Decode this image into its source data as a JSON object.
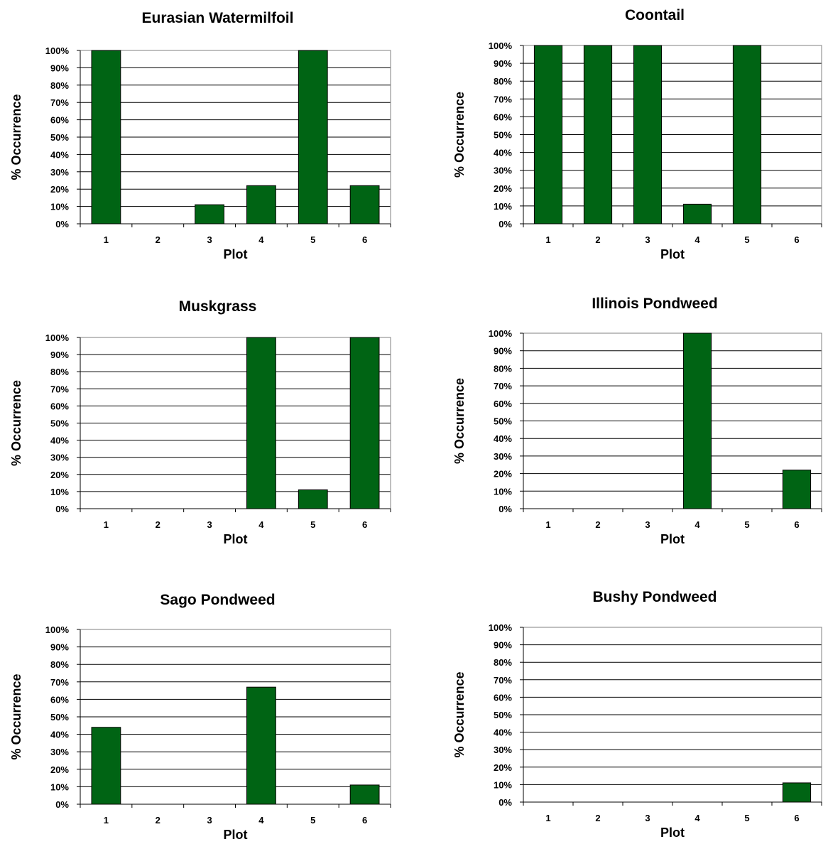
{
  "chart_data": [
    {
      "type": "bar",
      "title": "Eurasian Watermilfoil",
      "xlabel": "Plot",
      "ylabel": "% Occurrence",
      "categories": [
        "1",
        "2",
        "3",
        "4",
        "5",
        "6"
      ],
      "values": [
        100,
        0,
        11,
        22,
        100,
        22
      ],
      "ylim": [
        0,
        100
      ],
      "yticks": [
        "0%",
        "10%",
        "20%",
        "30%",
        "40%",
        "50%",
        "60%",
        "70%",
        "80%",
        "90%",
        "100%"
      ],
      "grid": true,
      "bar_color": "#006414"
    },
    {
      "type": "bar",
      "title": "Coontail",
      "xlabel": "Plot",
      "ylabel": "% Occurrence",
      "categories": [
        "1",
        "2",
        "3",
        "4",
        "5",
        "6"
      ],
      "values": [
        100,
        100,
        100,
        11,
        100,
        0
      ],
      "ylim": [
        0,
        100
      ],
      "yticks": [
        "0%",
        "10%",
        "20%",
        "30%",
        "40%",
        "50%",
        "60%",
        "70%",
        "80%",
        "90%",
        "100%"
      ],
      "grid": true,
      "bar_color": "#006414"
    },
    {
      "type": "bar",
      "title": "Muskgrass",
      "xlabel": "Plot",
      "ylabel": "% Occurrence",
      "categories": [
        "1",
        "2",
        "3",
        "4",
        "5",
        "6"
      ],
      "values": [
        0,
        0,
        0,
        100,
        11,
        100
      ],
      "ylim": [
        0,
        100
      ],
      "yticks": [
        "0%",
        "10%",
        "20%",
        "30%",
        "40%",
        "50%",
        "60%",
        "70%",
        "80%",
        "90%",
        "100%"
      ],
      "grid": true,
      "bar_color": "#006414"
    },
    {
      "type": "bar",
      "title": "Illinois Pondweed",
      "xlabel": "Plot",
      "ylabel": "% Occurrence",
      "categories": [
        "1",
        "2",
        "3",
        "4",
        "5",
        "6"
      ],
      "values": [
        0,
        0,
        0,
        100,
        0,
        22
      ],
      "ylim": [
        0,
        100
      ],
      "yticks": [
        "0%",
        "10%",
        "20%",
        "30%",
        "40%",
        "50%",
        "60%",
        "70%",
        "80%",
        "90%",
        "100%"
      ],
      "grid": true,
      "bar_color": "#006414"
    },
    {
      "type": "bar",
      "title": "Sago Pondweed",
      "xlabel": "Plot",
      "ylabel": "% Occurrence",
      "categories": [
        "1",
        "2",
        "3",
        "4",
        "5",
        "6"
      ],
      "values": [
        44,
        0,
        0,
        67,
        0,
        11
      ],
      "ylim": [
        0,
        100
      ],
      "yticks": [
        "0%",
        "10%",
        "20%",
        "30%",
        "40%",
        "50%",
        "60%",
        "70%",
        "80%",
        "90%",
        "100%"
      ],
      "grid": true,
      "bar_color": "#006414"
    },
    {
      "type": "bar",
      "title": "Bushy Pondweed",
      "xlabel": "Plot",
      "ylabel": "% Occurrence",
      "categories": [
        "1",
        "2",
        "3",
        "4",
        "5",
        "6"
      ],
      "values": [
        0,
        0,
        0,
        0,
        0,
        11
      ],
      "ylim": [
        0,
        100
      ],
      "yticks": [
        "0%",
        "10%",
        "20%",
        "30%",
        "40%",
        "50%",
        "60%",
        "70%",
        "80%",
        "90%",
        "100%"
      ],
      "grid": true,
      "bar_color": "#006414"
    }
  ]
}
